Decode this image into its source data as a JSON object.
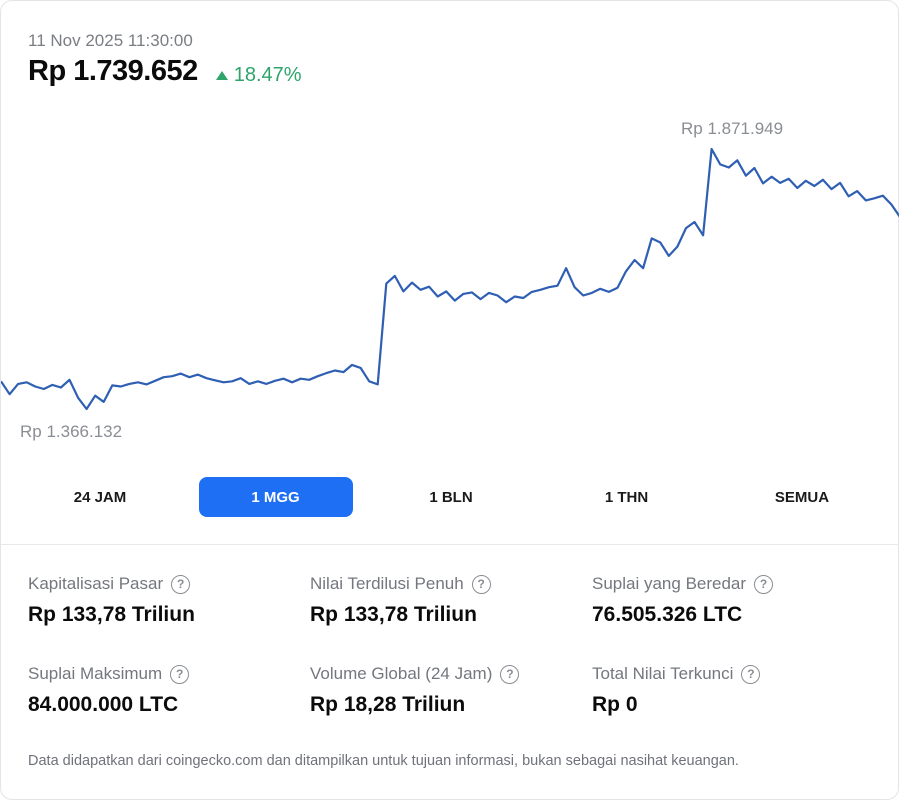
{
  "header": {
    "timestamp": "11 Nov 2025 11:30:00",
    "price": "Rp 1.739.652",
    "change": "18.47%",
    "change_color": "#2ea46b"
  },
  "chart_data": {
    "type": "line",
    "title": "",
    "high_label": "Rp 1.871.949",
    "low_label": "Rp 1.366.132",
    "line_color": "#2f5fb3",
    "ylim": [
      1350000,
      1900000
    ],
    "series": [
      {
        "values": [
          1420000,
          1395000,
          1415000,
          1418000,
          1410000,
          1405000,
          1413000,
          1408000,
          1423000,
          1388000,
          1366132,
          1392000,
          1380000,
          1412000,
          1410000,
          1415000,
          1418000,
          1414000,
          1421000,
          1428000,
          1430000,
          1435000,
          1428000,
          1433000,
          1426000,
          1422000,
          1418000,
          1420000,
          1426000,
          1415000,
          1420000,
          1415000,
          1421000,
          1425000,
          1418000,
          1425000,
          1423000,
          1430000,
          1436000,
          1441000,
          1438000,
          1452000,
          1446000,
          1420000,
          1414000,
          1610000,
          1625000,
          1595000,
          1612000,
          1598000,
          1604000,
          1585000,
          1595000,
          1577000,
          1590000,
          1593000,
          1580000,
          1592000,
          1587000,
          1574000,
          1585000,
          1582000,
          1594000,
          1598000,
          1603000,
          1606000,
          1640000,
          1603000,
          1587000,
          1592000,
          1600000,
          1594000,
          1602000,
          1634000,
          1656000,
          1640000,
          1698000,
          1690000,
          1664000,
          1682000,
          1718000,
          1730000,
          1704000,
          1871949,
          1842000,
          1836000,
          1850000,
          1820000,
          1835000,
          1805000,
          1818000,
          1806000,
          1814000,
          1796000,
          1810000,
          1800000,
          1812000,
          1794000,
          1806000,
          1780000,
          1790000,
          1772000,
          1776000,
          1781000,
          1764000,
          1739652
        ]
      }
    ]
  },
  "ranges": {
    "items": [
      "24 JAM",
      "1 MGG",
      "1 BLN",
      "1 THN",
      "SEMUA"
    ],
    "active": "1 MGG"
  },
  "stats": [
    {
      "label": "Kapitalisasi Pasar",
      "value": "Rp 133,78 Triliun"
    },
    {
      "label": "Nilai Terdilusi Penuh",
      "value": "Rp 133,78 Triliun"
    },
    {
      "label": "Suplai yang Beredar",
      "value": "76.505.326 LTC"
    },
    {
      "label": "Suplai Maksimum",
      "value": "84.000.000 LTC"
    },
    {
      "label": "Volume Global (24 Jam)",
      "value": "Rp 18,28 Triliun"
    },
    {
      "label": "Total Nilai Terkunci",
      "value": "Rp 0"
    }
  ],
  "help_glyph": "?",
  "disclaimer": "Data didapatkan dari coingecko.com dan ditampilkan untuk tujuan informasi, bukan sebagai nasihat keuangan."
}
